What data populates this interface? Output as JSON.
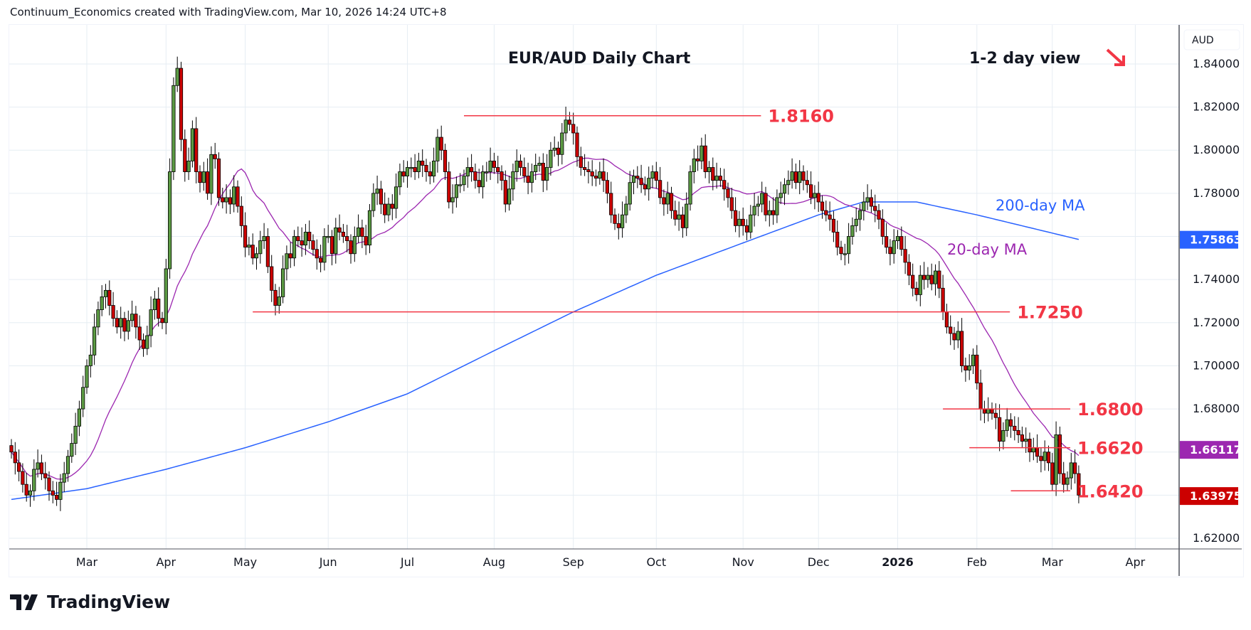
{
  "header": "Continuum_Economics created with TradingView.com, Mar 10, 2026 14:24 UTC+8",
  "brand": "TradingView",
  "chart_data": {
    "type": "candlestick",
    "title": "EUR/AUD Daily Chart",
    "subtitle": "1-2 day view",
    "bias_icon": "down-right-arrow-icon",
    "currency": "AUD",
    "ylim": [
      1.608,
      1.852
    ],
    "yticks": [
      "1.84000",
      "1.82000",
      "1.80000",
      "1.78000",
      "1.74000",
      "1.72000",
      "1.70000",
      "1.68000",
      "1.62000"
    ],
    "ytick_values": [
      1.84,
      1.82,
      1.8,
      1.78,
      1.74,
      1.72,
      1.7,
      1.68,
      1.62
    ],
    "grid_values": [
      1.62,
      1.64,
      1.66,
      1.68,
      1.7,
      1.72,
      1.74,
      1.76,
      1.78,
      1.8,
      1.82,
      1.84
    ],
    "x_labels": [
      {
        "label": "Mar",
        "bar": 20
      },
      {
        "label": "Apr",
        "bar": 41
      },
      {
        "label": "May",
        "bar": 62
      },
      {
        "label": "Jun",
        "bar": 84
      },
      {
        "label": "Jul",
        "bar": 105
      },
      {
        "label": "Aug",
        "bar": 128
      },
      {
        "label": "Sep",
        "bar": 149
      },
      {
        "label": "Oct",
        "bar": 171
      },
      {
        "label": "Nov",
        "bar": 194
      },
      {
        "label": "Dec",
        "bar": 214
      },
      {
        "label": "2026",
        "bar": 235
      },
      {
        "label": "Feb",
        "bar": 256
      },
      {
        "label": "Mar",
        "bar": 276
      },
      {
        "label": "Apr",
        "bar": 298
      }
    ],
    "closes": [
      1.66,
      1.655,
      1.651,
      1.645,
      1.64,
      1.642,
      1.652,
      1.655,
      1.65,
      1.648,
      1.642,
      1.64,
      1.638,
      1.646,
      1.65,
      1.658,
      1.664,
      1.672,
      1.68,
      1.69,
      1.7,
      1.705,
      1.718,
      1.726,
      1.732,
      1.735,
      1.728,
      1.722,
      1.718,
      1.722,
      1.716,
      1.721,
      1.724,
      1.718,
      1.712,
      1.708,
      1.714,
      1.726,
      1.731,
      1.722,
      1.72,
      1.745,
      1.79,
      1.83,
      1.838,
      1.805,
      1.79,
      1.795,
      1.81,
      1.79,
      1.785,
      1.79,
      1.78,
      1.798,
      1.796,
      1.778,
      1.776,
      1.778,
      1.775,
      1.783,
      1.774,
      1.765,
      1.755,
      1.756,
      1.75,
      1.752,
      1.758,
      1.76,
      1.746,
      1.735,
      1.728,
      1.732,
      1.745,
      1.752,
      1.75,
      1.76,
      1.758,
      1.756,
      1.762,
      1.758,
      1.754,
      1.75,
      1.748,
      1.76,
      1.76,
      1.752,
      1.764,
      1.762,
      1.76,
      1.758,
      1.752,
      1.76,
      1.764,
      1.76,
      1.756,
      1.772,
      1.78,
      1.782,
      1.775,
      1.77,
      1.775,
      1.773,
      1.783,
      1.79,
      1.788,
      1.792,
      1.792,
      1.79,
      1.795,
      1.793,
      1.79,
      1.788,
      1.795,
      1.806,
      1.8,
      1.79,
      1.776,
      1.778,
      1.784,
      1.784,
      1.788,
      1.792,
      1.79,
      1.786,
      1.783,
      1.79,
      1.79,
      1.795,
      1.792,
      1.79,
      1.786,
      1.775,
      1.782,
      1.79,
      1.795,
      1.792,
      1.788,
      1.785,
      1.79,
      1.793,
      1.794,
      1.786,
      1.792,
      1.8,
      1.801,
      1.798,
      1.808,
      1.814,
      1.812,
      1.808,
      1.797,
      1.792,
      1.791,
      1.79,
      1.788,
      1.787,
      1.79,
      1.786,
      1.78,
      1.77,
      1.766,
      1.764,
      1.77,
      1.775,
      1.785,
      1.788,
      1.787,
      1.784,
      1.782,
      1.787,
      1.79,
      1.786,
      1.778,
      1.775,
      1.78,
      1.772,
      1.768,
      1.77,
      1.764,
      1.775,
      1.79,
      1.796,
      1.795,
      1.802,
      1.79,
      1.792,
      1.786,
      1.788,
      1.786,
      1.782,
      1.778,
      1.772,
      1.765,
      1.768,
      1.765,
      1.762,
      1.77,
      1.774,
      1.775,
      1.78,
      1.77,
      1.772,
      1.77,
      1.778,
      1.78,
      1.784,
      1.786,
      1.79,
      1.785,
      1.79,
      1.786,
      1.784,
      1.778,
      1.78,
      1.776,
      1.772,
      1.77,
      1.768,
      1.762,
      1.755,
      1.752,
      1.752,
      1.76,
      1.765,
      1.768,
      1.772,
      1.776,
      1.778,
      1.774,
      1.772,
      1.768,
      1.76,
      1.755,
      1.752,
      1.758,
      1.76,
      1.754,
      1.748,
      1.742,
      1.736,
      1.733,
      1.742,
      1.74,
      1.742,
      1.738,
      1.744,
      1.736,
      1.725,
      1.718,
      1.715,
      1.712,
      1.716,
      1.7,
      1.698,
      1.7,
      1.705,
      1.692,
      1.68,
      1.678,
      1.68,
      1.678,
      1.676,
      1.665,
      1.67,
      1.675,
      1.672,
      1.67,
      1.668,
      1.665,
      1.666,
      1.66,
      1.662,
      1.658,
      1.656,
      1.66,
      1.655,
      1.645,
      1.668,
      1.65,
      1.645,
      1.648,
      1.655,
      1.65,
      1.64
    ],
    "ma200_points": [
      [
        0,
        1.638
      ],
      [
        20,
        1.643
      ],
      [
        41,
        1.652
      ],
      [
        62,
        1.662
      ],
      [
        84,
        1.674
      ],
      [
        105,
        1.687
      ],
      [
        128,
        1.707
      ],
      [
        149,
        1.725
      ],
      [
        171,
        1.742
      ],
      [
        194,
        1.757
      ],
      [
        214,
        1.77
      ],
      [
        226,
        1.776
      ],
      [
        240,
        1.776
      ],
      [
        256,
        1.77
      ],
      [
        283,
        1.7586
      ]
    ],
    "series": [
      {
        "name": "20-day MA",
        "label": "20-day MA",
        "color": "#9c27b0",
        "last": "1.66117"
      },
      {
        "name": "200-day MA",
        "label": "200-day MA",
        "color": "#2962ff",
        "last": "1.75863"
      }
    ],
    "last_price": "1.63975",
    "levels": [
      {
        "value": 1.816,
        "label": "1.8160",
        "from_bar": 120,
        "to_bar": 198
      },
      {
        "value": 1.725,
        "label": "1.7250",
        "from_bar": 64,
        "to_bar": 264
      },
      {
        "value": 1.68,
        "label": "1.6800",
        "from_bar": 247,
        "to_bar": 280
      },
      {
        "value": 1.662,
        "label": "1.6620",
        "from_bar": 254,
        "to_bar": 280
      },
      {
        "value": 1.642,
        "label": "1.6420",
        "from_bar": 265,
        "to_bar": 280
      }
    ],
    "colors": {
      "up": "#5b9a43",
      "down": "#cc0000",
      "level": "#f23645",
      "grid": "#e6edf3"
    }
  }
}
